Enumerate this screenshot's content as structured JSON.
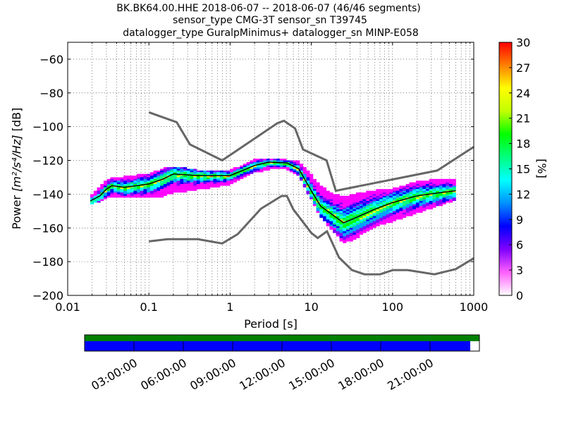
{
  "title_lines": [
    "BK.BK64.00.HHE   2018-06-07 -- 2018-06-07  (46/46 segments)",
    "sensor_type CMG-3T sensor_sn T39745",
    "datalogger_type GuralpMinimus+ datalogger_sn MINP-E058"
  ],
  "chart_data": {
    "type": "heatmap",
    "xlabel": "Period [s]",
    "ylabel_prefix": "Power ",
    "ylabel_unit": "[m²/s⁴/Hz]",
    "ylabel_suffix": " [dB]",
    "xscale": "log",
    "xlim": [
      0.01,
      1000
    ],
    "ylim": [
      -200,
      -50
    ],
    "x_ticks": [
      {
        "value": 0.01,
        "label": "0.01"
      },
      {
        "value": 0.1,
        "label": "0.1"
      },
      {
        "value": 1,
        "label": "1"
      },
      {
        "value": 10,
        "label": "10"
      },
      {
        "value": 100,
        "label": "100"
      },
      {
        "value": 1000,
        "label": "1000"
      }
    ],
    "y_ticks": [
      {
        "value": -60,
        "label": "−60"
      },
      {
        "value": -80,
        "label": "−80"
      },
      {
        "value": -100,
        "label": "−100"
      },
      {
        "value": -120,
        "label": "−120"
      },
      {
        "value": -140,
        "label": "−140"
      },
      {
        "value": -160,
        "label": "−160"
      },
      {
        "value": -180,
        "label": "−180"
      },
      {
        "value": -200,
        "label": "−200"
      }
    ],
    "grid": true,
    "colorbar": {
      "label": "[%]",
      "min": 0,
      "max": 30,
      "ticks": [
        {
          "value": 0,
          "label": "0"
        },
        {
          "value": 3,
          "label": "3"
        },
        {
          "value": 6,
          "label": "6"
        },
        {
          "value": 9,
          "label": "9"
        },
        {
          "value": 12,
          "label": "12"
        },
        {
          "value": 15,
          "label": "15"
        },
        {
          "value": 18,
          "label": "18"
        },
        {
          "value": 21,
          "label": "21"
        },
        {
          "value": 24,
          "label": "24"
        },
        {
          "value": 27,
          "label": "27"
        },
        {
          "value": 30,
          "label": "30"
        }
      ]
    },
    "nhnm": {
      "period": [
        0.1,
        0.22,
        0.32,
        0.8,
        3.8,
        4.6,
        6.3,
        7.9,
        15.4,
        20,
        354.8,
        1000
      ],
      "power": [
        -91.5,
        -97.4,
        -110.5,
        -120,
        -98,
        -96.5,
        -101,
        -113.5,
        -120,
        -138,
        -126,
        -112
      ]
    },
    "nlnm": {
      "period": [
        0.1,
        0.17,
        0.4,
        0.8,
        1.24,
        2.4,
        4.3,
        5,
        6,
        10,
        12,
        15.6,
        21.9,
        31.6,
        45,
        70,
        101,
        154,
        328,
        600,
        1000
      ],
      "power": [
        -168,
        -166.7,
        -166.7,
        -169.2,
        -163.7,
        -148.6,
        -141.1,
        -141.1,
        -149,
        -163,
        -166,
        -162,
        -177.5,
        -185,
        -187.5,
        -187.5,
        -185,
        -185,
        -187.5,
        -184.4,
        -178
      ]
    },
    "median": {
      "period": [
        0.019,
        0.025,
        0.03,
        0.035,
        0.05,
        0.1,
        0.15,
        0.2,
        0.4,
        1,
        2,
        3,
        5,
        7,
        10,
        13,
        18,
        25,
        35,
        60,
        100,
        200,
        400,
        600
      ],
      "power": [
        -144,
        -141,
        -137,
        -135,
        -136,
        -134,
        -131,
        -128,
        -129,
        -129,
        -123,
        -121,
        -121.5,
        -125,
        -138,
        -147,
        -152,
        -157,
        -154,
        -149,
        -145,
        -141,
        -139,
        -138
      ]
    },
    "distribution": [
      {
        "period": 0.019,
        "min": -145,
        "max": -141
      },
      {
        "period": 0.025,
        "min": -143,
        "max": -136
      },
      {
        "period": 0.03,
        "min": -141,
        "max": -132
      },
      {
        "period": 0.035,
        "min": -140,
        "max": -131
      },
      {
        "period": 0.05,
        "min": -141,
        "max": -130
      },
      {
        "period": 0.1,
        "min": -141,
        "max": -128
      },
      {
        "period": 0.15,
        "min": -140,
        "max": -125
      },
      {
        "period": 0.2,
        "min": -138,
        "max": -124
      },
      {
        "period": 0.4,
        "min": -136,
        "max": -126
      },
      {
        "period": 1,
        "min": -133,
        "max": -126
      },
      {
        "period": 2,
        "min": -126,
        "max": -120
      },
      {
        "period": 3,
        "min": -124,
        "max": -119
      },
      {
        "period": 5,
        "min": -124,
        "max": -120
      },
      {
        "period": 7,
        "min": -128,
        "max": -121
      },
      {
        "period": 10,
        "min": -142,
        "max": -129
      },
      {
        "period": 13,
        "min": -152,
        "max": -135
      },
      {
        "period": 18,
        "min": -160,
        "max": -140
      },
      {
        "period": 25,
        "min": -168,
        "max": -142
      },
      {
        "period": 35,
        "min": -165,
        "max": -140
      },
      {
        "period": 60,
        "min": -158,
        "max": -138
      },
      {
        "period": 100,
        "min": -155,
        "max": -137
      },
      {
        "period": 200,
        "min": -150,
        "max": -133
      },
      {
        "period": 400,
        "min": -145,
        "max": -131
      },
      {
        "period": 600,
        "min": -142,
        "max": -131
      }
    ],
    "percent_colormap": [
      "#ffffff",
      "#ff00ff",
      "#8000ff",
      "#0000ff",
      "#00a0ff",
      "#00ffff",
      "#00ff80",
      "#00ff00",
      "#ffff00",
      "#ff8000",
      "#ff0000"
    ]
  },
  "timeline": {
    "labels": [
      "03:00:00",
      "06:00:00",
      "09:00:00",
      "12:00:00",
      "15:00:00",
      "18:00:00",
      "21:00:00"
    ],
    "data_fraction": 0.977,
    "colors": {
      "top": "#008000",
      "bottom": "#0000ff",
      "empty": "#ffffff"
    }
  }
}
